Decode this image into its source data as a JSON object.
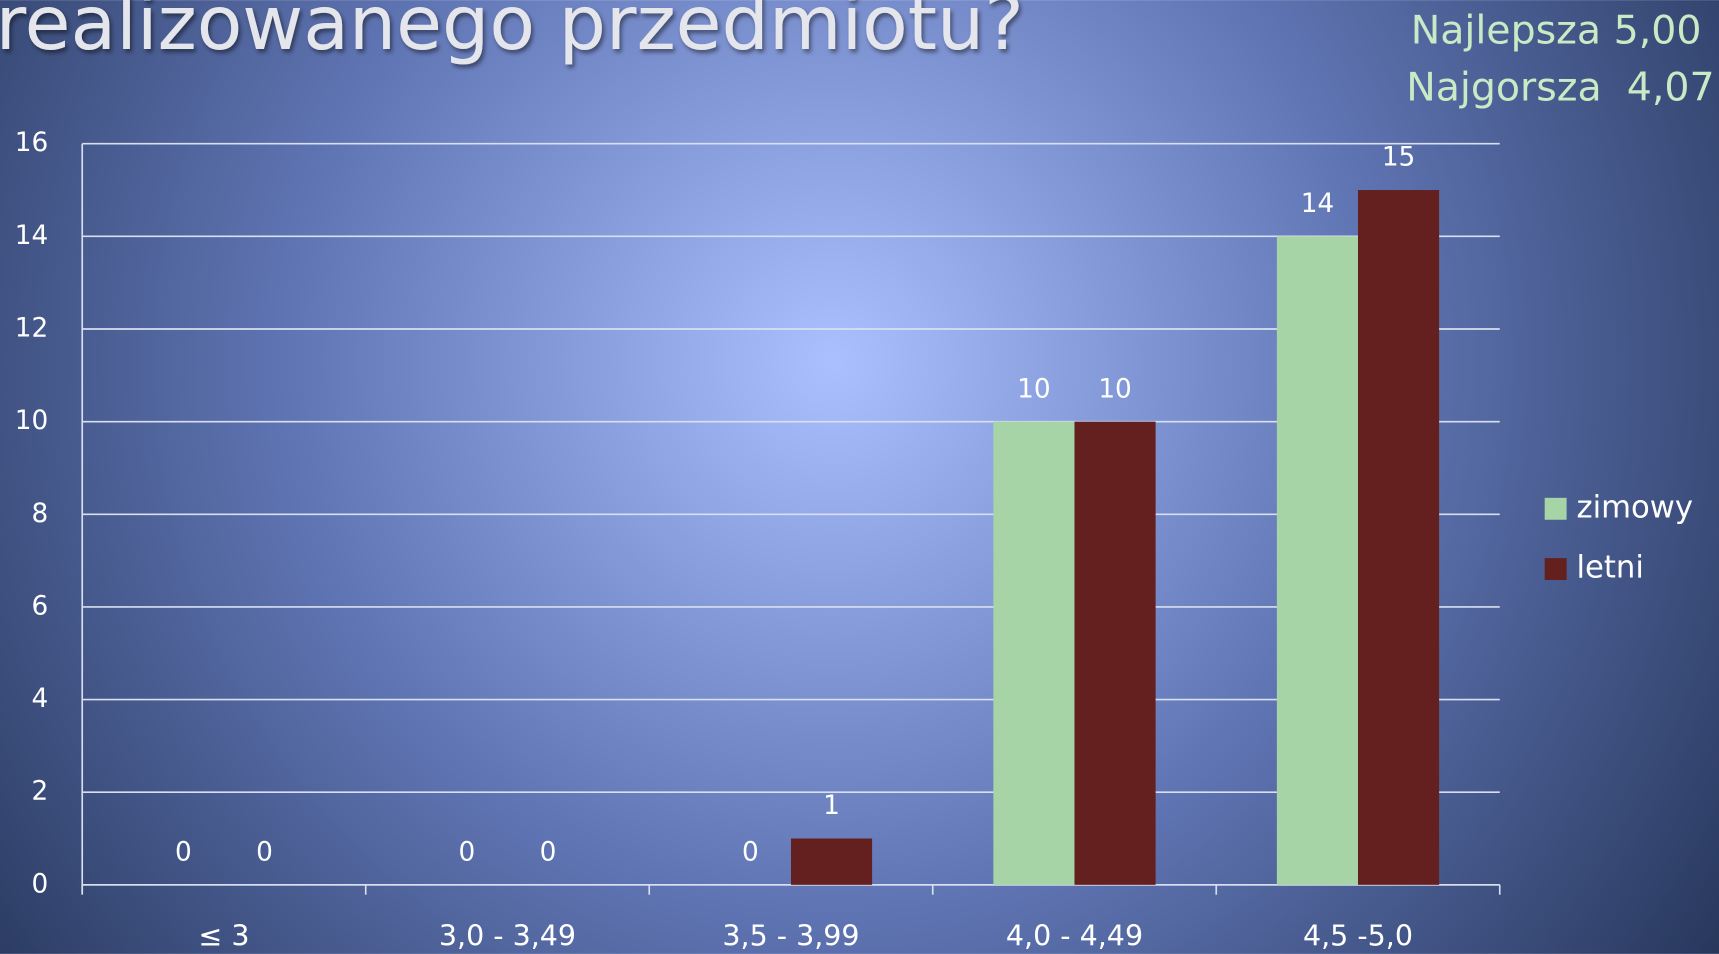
{
  "chart_data": {
    "type": "bar",
    "title": "realizowanego przedmiotu?",
    "annotations": [
      "Najlepsza 5,00",
      "Najgorsza  4,07"
    ],
    "categories": [
      "≤ 3",
      "3,0 - 3,49",
      "3,5 - 3,99",
      "4,0 - 4,49",
      "4,5 -5,0"
    ],
    "series": [
      {
        "name": "zimowy",
        "color": "#a6d4a6",
        "values": [
          0,
          0,
          0,
          10,
          14
        ]
      },
      {
        "name": "letni",
        "color": "#641f1f",
        "values": [
          0,
          0,
          1,
          10,
          15
        ]
      }
    ],
    "ylim": [
      0,
      16
    ],
    "yticks": [
      0,
      2,
      4,
      6,
      8,
      10,
      12,
      14,
      16
    ],
    "grid": true,
    "legend": "right"
  }
}
